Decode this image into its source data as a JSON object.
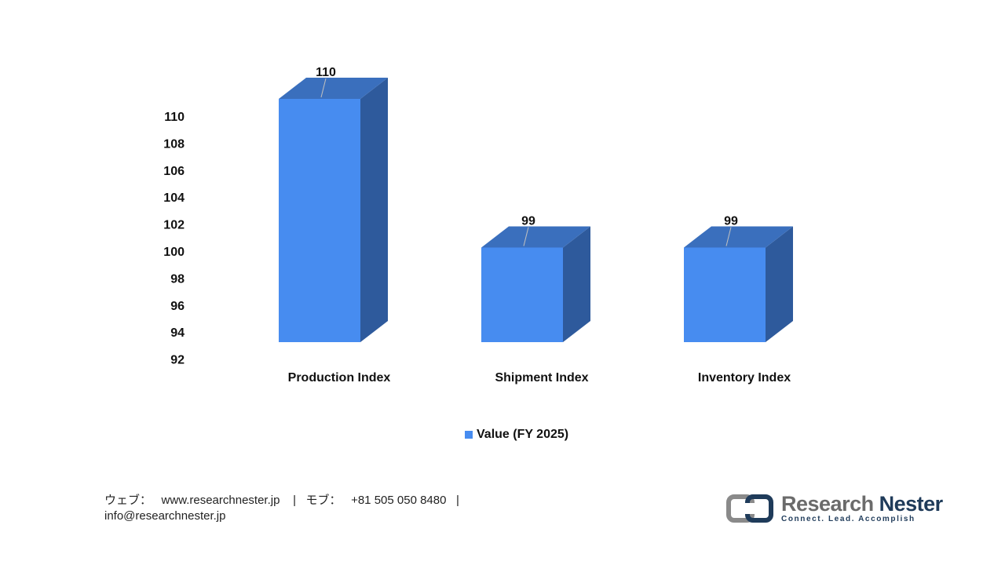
{
  "chart_data": {
    "type": "bar",
    "style": "3d",
    "categories": [
      "Production Index",
      "Shipment Index",
      "Inventory Index"
    ],
    "series": [
      {
        "name": "Value (FY 2025)",
        "values": [
          110,
          99,
          99
        ]
      }
    ],
    "data_labels": [
      "110",
      "99",
      "99"
    ],
    "yticks": [
      "110",
      "108",
      "106",
      "104",
      "102",
      "100",
      "98",
      "96",
      "94",
      "92"
    ],
    "ylim": [
      92,
      110
    ],
    "grid": false,
    "legend_position": "bottom",
    "colors": {
      "front": "#478cf0",
      "top": "#3a6fbd",
      "side": "#2e5a9c"
    }
  },
  "footer": {
    "web_label": "ウェブ：",
    "web_url": "www.researchnester.jp",
    "sep1": "|",
    "mobile_label": "モブ：",
    "phone": "+81 505 050 8480",
    "sep2": "|",
    "email": "info@researchnester.jp"
  },
  "logo": {
    "name_first": "Research",
    "name_second": "Nester",
    "tagline": "Connect. Lead. Accomplish",
    "icon": "research-nester-logo-icon",
    "colors": {
      "grey": "#6b6b6b",
      "navy": "#1f3b5a"
    }
  }
}
